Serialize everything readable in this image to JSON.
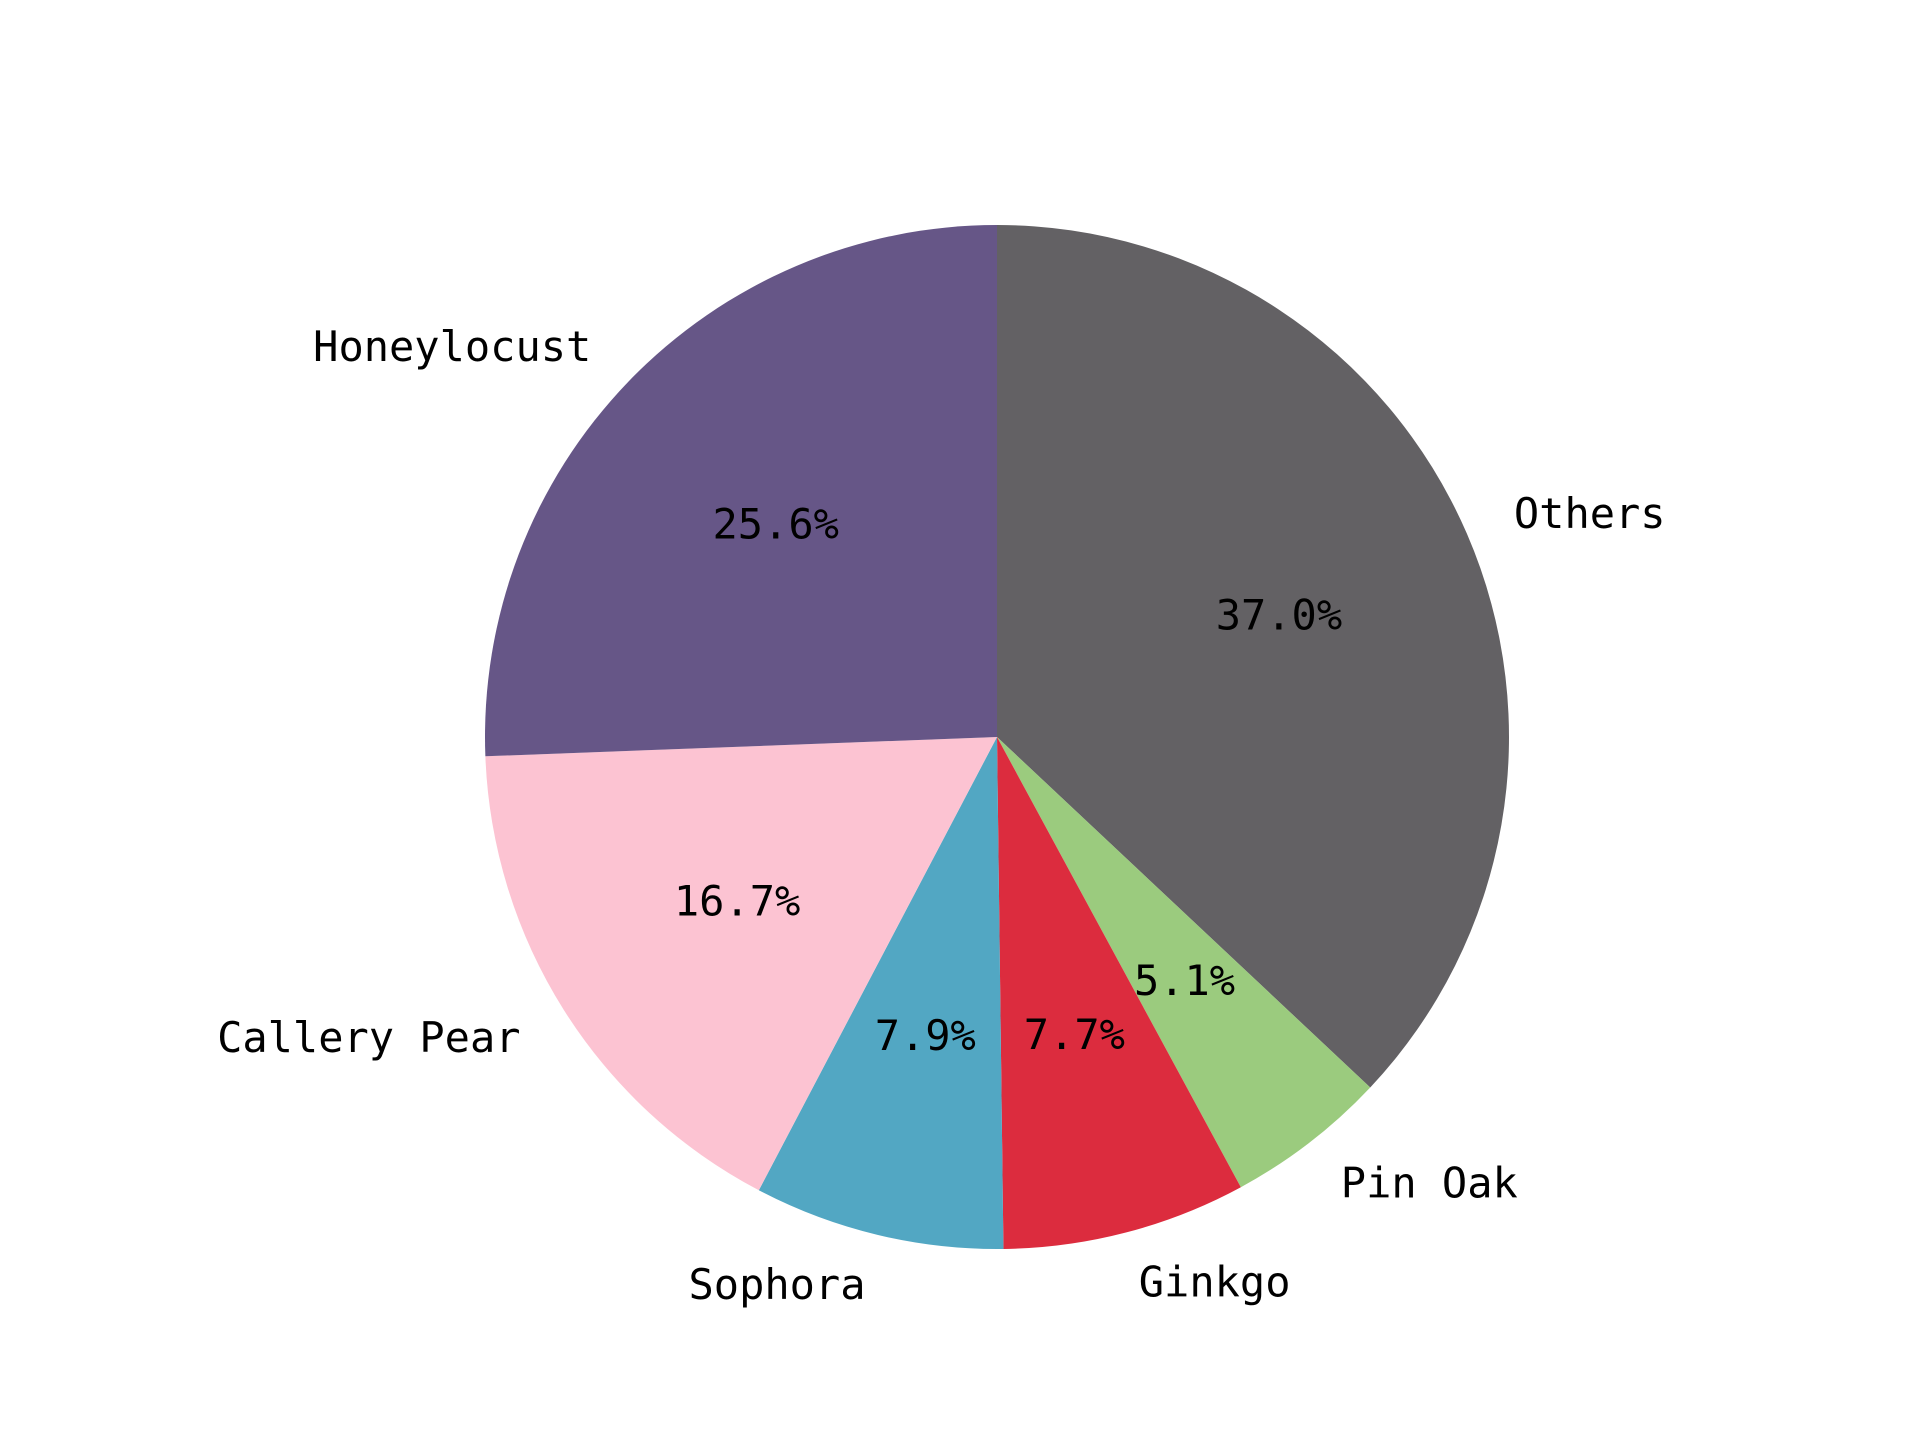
{
  "chart_data": {
    "type": "pie",
    "start_angle_deg": 90,
    "direction": "clockwise",
    "slices": [
      {
        "label": "Others",
        "value": 37.0,
        "pct_label": "37.0%",
        "color": "#636164"
      },
      {
        "label": "Pin Oak",
        "value": 5.1,
        "pct_label": "5.1%",
        "color": "#9bcb7e"
      },
      {
        "label": "Ginkgo",
        "value": 7.7,
        "pct_label": "7.7%",
        "color": "#dc2c3e"
      },
      {
        "label": "Sophora",
        "value": 7.9,
        "pct_label": "7.9%",
        "color": "#52a7c3"
      },
      {
        "label": "Callery Pear",
        "value": 16.7,
        "pct_label": "16.7%",
        "color": "#fcc3d2"
      },
      {
        "label": "Honeylocust",
        "value": 25.6,
        "pct_label": "25.6%",
        "color": "#665687"
      }
    ]
  }
}
